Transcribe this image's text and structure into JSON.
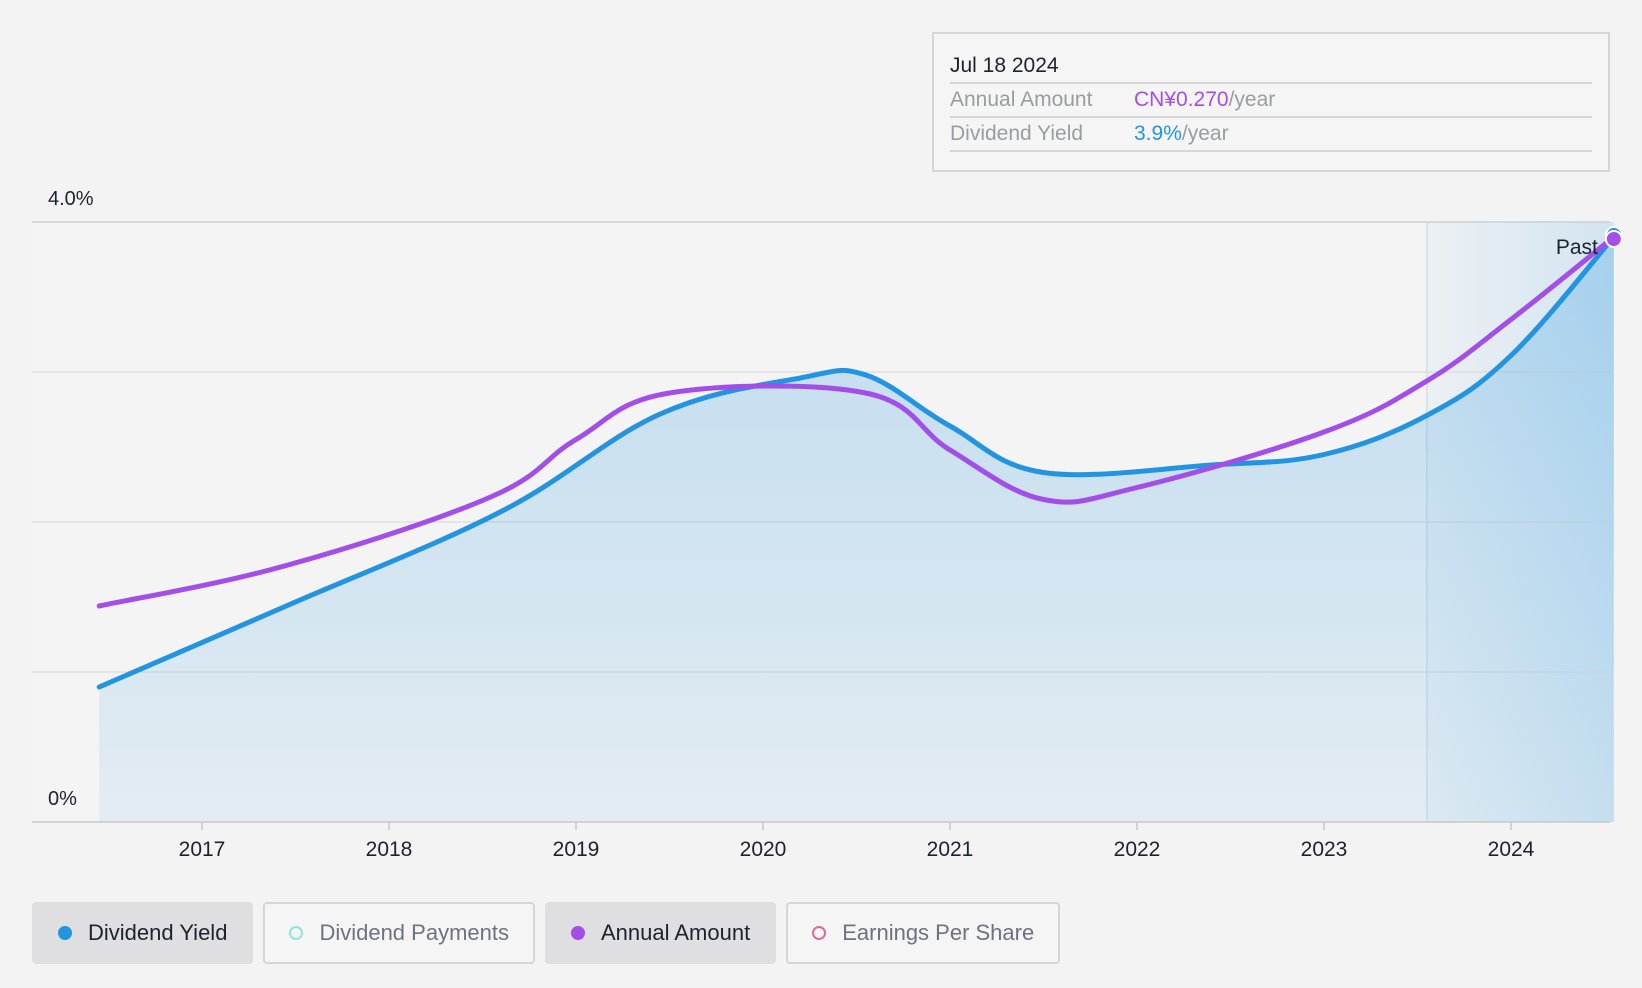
{
  "chart_data": {
    "type": "line",
    "x_ticks": [
      "2017",
      "2018",
      "2019",
      "2020",
      "2021",
      "2022",
      "2023",
      "2024"
    ],
    "y_tick_labels": {
      "max": "4.0%",
      "min": "0%"
    },
    "ylim": [
      0,
      4.0
    ],
    "gridlines": [
      1.0,
      2.0,
      3.0
    ],
    "forecast_label": "Past",
    "series": [
      {
        "name": "Dividend Yield",
        "color": "#2394e1",
        "filled": true,
        "points": [
          {
            "x": 2016.45,
            "y": 0.9
          },
          {
            "x": 2017.45,
            "y": 1.44
          },
          {
            "x": 2018.6,
            "y": 2.07
          },
          {
            "x": 2019.45,
            "y": 2.72
          },
          {
            "x": 2020.2,
            "y": 2.96
          },
          {
            "x": 2020.55,
            "y": 2.98
          },
          {
            "x": 2021.0,
            "y": 2.64
          },
          {
            "x": 2021.5,
            "y": 2.33
          },
          {
            "x": 2022.4,
            "y": 2.38
          },
          {
            "x": 2023.0,
            "y": 2.45
          },
          {
            "x": 2023.55,
            "y": 2.71
          },
          {
            "x": 2024.0,
            "y": 3.11
          },
          {
            "x": 2024.55,
            "y": 3.9
          }
        ]
      },
      {
        "name": "Annual Amount",
        "color": "#a34ee9",
        "filled": false,
        "points": [
          {
            "x": 2016.45,
            "y": 1.44
          },
          {
            "x": 2017.45,
            "y": 1.71
          },
          {
            "x": 2018.55,
            "y": 2.17
          },
          {
            "x": 2019.0,
            "y": 2.55
          },
          {
            "x": 2019.5,
            "y": 2.86
          },
          {
            "x": 2020.55,
            "y": 2.86
          },
          {
            "x": 2021.0,
            "y": 2.48
          },
          {
            "x": 2021.5,
            "y": 2.15
          },
          {
            "x": 2022.0,
            "y": 2.23
          },
          {
            "x": 2023.0,
            "y": 2.6
          },
          {
            "x": 2023.55,
            "y": 2.94
          },
          {
            "x": 2024.0,
            "y": 3.35
          },
          {
            "x": 2024.55,
            "y": 3.9
          }
        ]
      }
    ],
    "shaded_region_start": 2023.55,
    "x_end": 2024.55
  },
  "tooltip": {
    "date": "Jul 18 2024",
    "rows": [
      {
        "label": "Annual Amount",
        "value": "CN¥0.270",
        "unit": "/year",
        "color": "#a34ee9"
      },
      {
        "label": "Dividend Yield",
        "value": "3.9%",
        "unit": "/year",
        "color": "#2394e1"
      }
    ]
  },
  "legend": [
    {
      "label": "Dividend Yield",
      "dot_color": "#2394e1",
      "filled": true,
      "active": true
    },
    {
      "label": "Dividend Payments",
      "dot_color": "#8ee6dc",
      "filled": false,
      "active": false
    },
    {
      "label": "Annual Amount",
      "dot_color": "#a34ee9",
      "filled": true,
      "active": true
    },
    {
      "label": "Earnings Per Share",
      "dot_color": "#d9699e",
      "filled": false,
      "active": false
    }
  ]
}
